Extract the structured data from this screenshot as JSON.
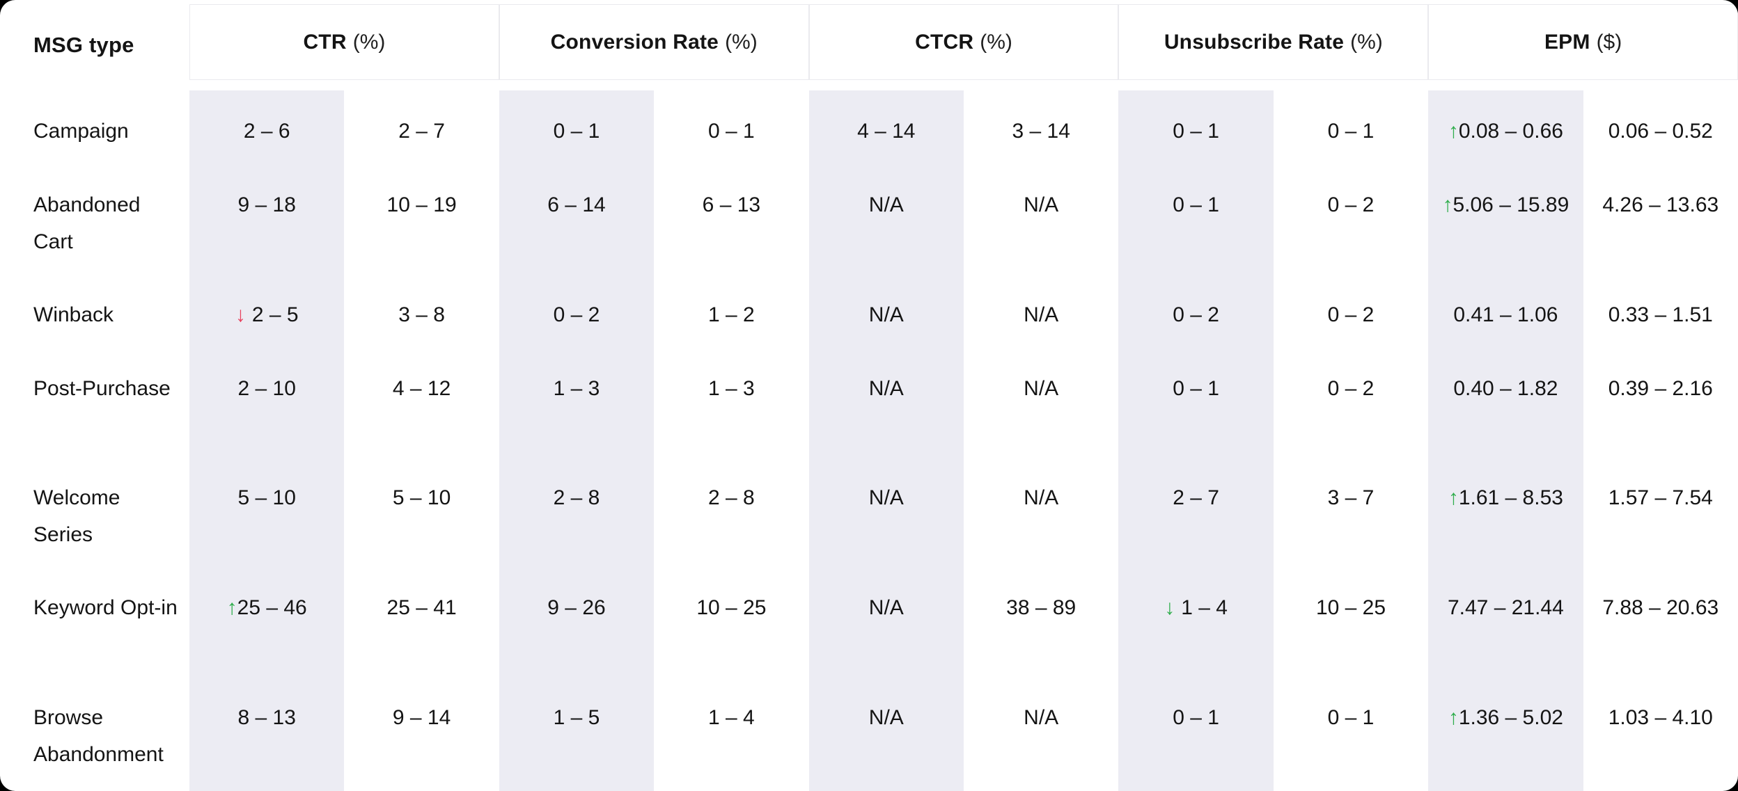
{
  "colors": {
    "card_bg": "#ffffff",
    "page_bg": "#000000",
    "stripe": "#ececf3",
    "text": "#141414",
    "header_border": "#eaeaee",
    "trend_up_green": "#2fad4c",
    "trend_down_red": "#e8425e"
  },
  "table": {
    "msg_type_header": "MSG type",
    "groups": [
      {
        "name": "CTR",
        "unit": "(%)"
      },
      {
        "name": "Conversion Rate",
        "unit": "(%)"
      },
      {
        "name": "CTCR",
        "unit": "(%)"
      },
      {
        "name": "Unsubscribe Rate",
        "unit": "(%)"
      },
      {
        "name": "EPM",
        "unit": "($)"
      }
    ],
    "column_keys": [
      "ctr-a",
      "ctr-b",
      "conv-a",
      "conv-b",
      "ctcr-a",
      "ctcr-b",
      "unsub-a",
      "unsub-b",
      "epm-a",
      "epm-b"
    ],
    "rows": [
      {
        "label": "Campaign",
        "cells": [
          {
            "t": "2 – 6"
          },
          {
            "t": "2 – 7"
          },
          {
            "t": "0 – 1"
          },
          {
            "t": "0 – 1"
          },
          {
            "t": "4 – 14"
          },
          {
            "t": "3 – 14"
          },
          {
            "t": "0 – 1"
          },
          {
            "t": "0 – 1"
          },
          {
            "t": "0.08 – 0.66",
            "arrow": "up",
            "color": "green"
          },
          {
            "t": "0.06 – 0.52"
          }
        ]
      },
      {
        "label": "Abandoned Cart",
        "cells": [
          {
            "t": "9 – 18"
          },
          {
            "t": "10 – 19"
          },
          {
            "t": "6 – 14"
          },
          {
            "t": "6 – 13"
          },
          {
            "t": "N/A"
          },
          {
            "t": "N/A"
          },
          {
            "t": "0 – 1"
          },
          {
            "t": "0 – 2"
          },
          {
            "t": "5.06 – 15.89",
            "arrow": "up",
            "color": "green"
          },
          {
            "t": "4.26 – 13.63"
          }
        ]
      },
      {
        "label": "Winback",
        "cells": [
          {
            "t": "2 – 5",
            "arrow": "down",
            "color": "red",
            "gap": true
          },
          {
            "t": "3 – 8"
          },
          {
            "t": "0 – 2"
          },
          {
            "t": "1 – 2"
          },
          {
            "t": "N/A"
          },
          {
            "t": "N/A"
          },
          {
            "t": "0 – 2"
          },
          {
            "t": "0 – 2"
          },
          {
            "t": "0.41 – 1.06"
          },
          {
            "t": "0.33 – 1.51"
          }
        ]
      },
      {
        "label": "Post-Purchase",
        "cells": [
          {
            "t": "2 – 10"
          },
          {
            "t": "4 – 12"
          },
          {
            "t": "1 – 3"
          },
          {
            "t": "1 – 3"
          },
          {
            "t": "N/A"
          },
          {
            "t": "N/A"
          },
          {
            "t": "0 – 1"
          },
          {
            "t": "0 – 2"
          },
          {
            "t": "0.40 – 1.82"
          },
          {
            "t": "0.39 – 2.16"
          }
        ]
      },
      {
        "label": "Welcome Series",
        "cells": [
          {
            "t": "5 – 10"
          },
          {
            "t": "5 – 10"
          },
          {
            "t": "2 – 8"
          },
          {
            "t": "2 – 8"
          },
          {
            "t": "N/A"
          },
          {
            "t": "N/A"
          },
          {
            "t": "2 – 7"
          },
          {
            "t": "3 – 7"
          },
          {
            "t": "1.61 – 8.53",
            "arrow": "up",
            "color": "green"
          },
          {
            "t": "1.57 – 7.54"
          }
        ]
      },
      {
        "label": "Keyword Opt-in",
        "cells": [
          {
            "t": "25 – 46",
            "arrow": "up",
            "color": "green"
          },
          {
            "t": "25 – 41"
          },
          {
            "t": "9 – 26"
          },
          {
            "t": "10 – 25"
          },
          {
            "t": "N/A"
          },
          {
            "t": "38 – 89"
          },
          {
            "t": "1 – 4",
            "arrow": "down",
            "color": "green",
            "gap": true
          },
          {
            "t": "10 – 25"
          },
          {
            "t": "7.47 – 21.44"
          },
          {
            "t": "7.88 – 20.63"
          }
        ]
      },
      {
        "label": "Browse Abandonment",
        "cells": [
          {
            "t": "8 – 13"
          },
          {
            "t": "9 – 14"
          },
          {
            "t": "1 – 5"
          },
          {
            "t": "1 – 4"
          },
          {
            "t": "N/A"
          },
          {
            "t": "N/A"
          },
          {
            "t": "0 – 1"
          },
          {
            "t": "0 – 1"
          },
          {
            "t": "1.36 – 5.02",
            "arrow": "up",
            "color": "green"
          },
          {
            "t": "1.03 – 4.10"
          }
        ]
      }
    ]
  }
}
